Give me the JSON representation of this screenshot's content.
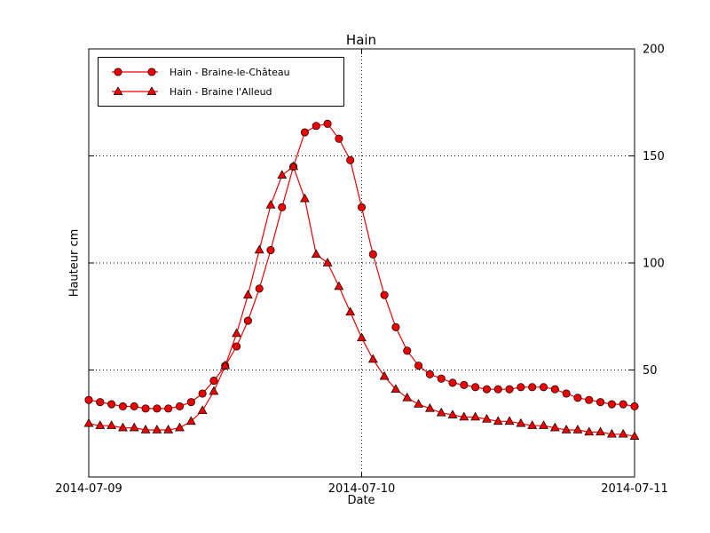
{
  "figure": {
    "background": "#ffffff"
  },
  "chart_data": {
    "type": "line",
    "title": "Hain",
    "xlabel": "Date",
    "ylabel": "Hauteur cm",
    "grid": "dotted",
    "legend_position": "upper left",
    "line_color": "#ee0000",
    "marker_edge_color": "#000000",
    "ylim": [
      0,
      200
    ],
    "y_ticks": [
      50,
      100,
      150,
      200
    ],
    "x_range_hours": [
      0,
      48
    ],
    "x_ticks_hours": [
      0,
      24,
      48
    ],
    "x_tick_labels": [
      "2014-07-09",
      "2014-07-10",
      "2014-07-11"
    ],
    "x_hours": [
      0,
      1,
      2,
      3,
      4,
      5,
      6,
      7,
      8,
      9,
      10,
      11,
      12,
      13,
      14,
      15,
      16,
      17,
      18,
      19,
      20,
      21,
      22,
      23,
      24,
      25,
      26,
      27,
      28,
      29,
      30,
      31,
      32,
      33,
      34,
      35,
      36,
      37,
      38,
      39,
      40,
      41,
      42,
      43,
      44,
      45,
      46,
      47,
      48
    ],
    "series": [
      {
        "name": "Hain - Braine-le-Château",
        "marker": "circle",
        "values": [
          36,
          35,
          34,
          33,
          33,
          32,
          32,
          32,
          33,
          35,
          39,
          45,
          52,
          61,
          73,
          88,
          106,
          126,
          145,
          161,
          164,
          165,
          158,
          148,
          126,
          104,
          85,
          70,
          59,
          52,
          48,
          46,
          44,
          43,
          42,
          41,
          41,
          41,
          42,
          42,
          42,
          41,
          39,
          37,
          36,
          35,
          34,
          34,
          33
        ]
      },
      {
        "name": "Hain - Braine l'Alleud",
        "marker": "triangle",
        "values": [
          25,
          24,
          24,
          23,
          23,
          22,
          22,
          22,
          23,
          26,
          31,
          40,
          52,
          67,
          85,
          106,
          127,
          141,
          145,
          130,
          104,
          100,
          89,
          77,
          65,
          55,
          47,
          41,
          37,
          34,
          32,
          30,
          29,
          28,
          28,
          27,
          26,
          26,
          25,
          24,
          24,
          23,
          22,
          22,
          21,
          21,
          20,
          20,
          19
        ]
      }
    ]
  }
}
